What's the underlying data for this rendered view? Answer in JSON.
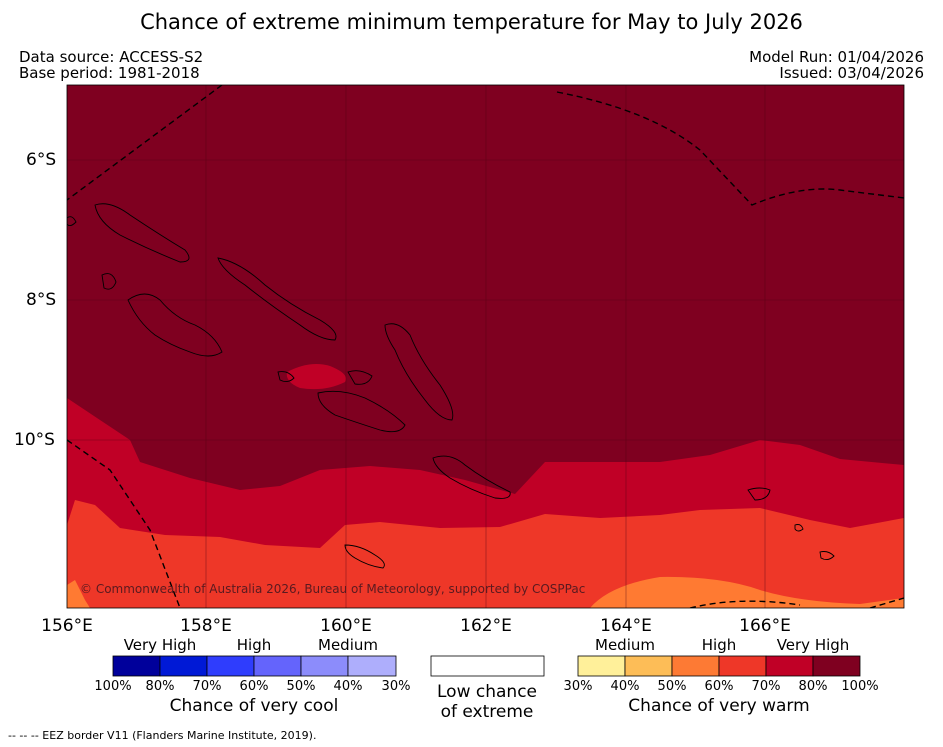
{
  "title": "Chance of extreme minimum temperature for May to July 2026",
  "meta": {
    "data_source": "Data source: ACCESS-S2",
    "base_period": "Base period: 1981-2018",
    "model_run": "Model Run: 01/04/2026",
    "issued": "Issued: 03/04/2026"
  },
  "map": {
    "lat_labels": [
      "6°S",
      "8°S",
      "10°S"
    ],
    "lon_labels": [
      "156°E",
      "158°E",
      "160°E",
      "162°E",
      "164°E",
      "166°E"
    ],
    "copyright": "© Commonwealth of Australia 2026, Bureau of Meteorology, supported by COSPPac",
    "colors": {
      "very_high_warm": "#7f0020",
      "high_warm": "#c00026",
      "medium_warm": "#ee3728",
      "orange": "#ff7a32",
      "coast": "#000000"
    }
  },
  "legend": {
    "cool": {
      "tiers": [
        "Very High",
        "High",
        "Medium"
      ],
      "colors": [
        "#00009b",
        "#0019d6",
        "#2f3dfd",
        "#6464fc",
        "#8c8cfb",
        "#aeaefc"
      ],
      "ticks": [
        "100%",
        "80%",
        "70%",
        "60%",
        "50%",
        "40%",
        "30%"
      ],
      "title": "Chance of very cool"
    },
    "low": {
      "title_line1": "Low chance",
      "title_line2": "of extreme",
      "color": "#ffffff"
    },
    "warm": {
      "tiers": [
        "Medium",
        "High",
        "Very High"
      ],
      "colors": [
        "#fff09a",
        "#fdbd57",
        "#fd7a34",
        "#ee3728",
        "#c00026",
        "#7f0020"
      ],
      "ticks": [
        "30%",
        "40%",
        "50%",
        "60%",
        "70%",
        "80%",
        "100%"
      ],
      "title": "Chance of very warm"
    }
  },
  "footer": "--  --  -- EEZ border V11 (Flanders Marine Institute, 2019)."
}
